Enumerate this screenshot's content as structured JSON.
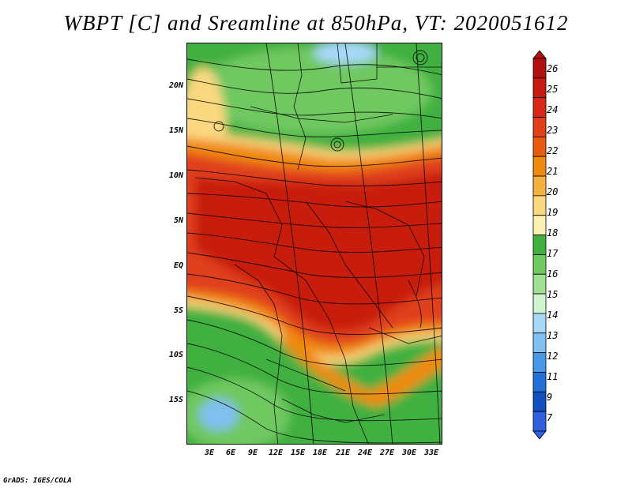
{
  "title": "WBPT [C] and Sreamline at 850hPa, VT: 2020051612",
  "footer": "GrADS: IGES/COLA",
  "y_axis": {
    "labels": [
      "20N",
      "15N",
      "10N",
      "5N",
      "EQ",
      "5S",
      "10S",
      "15S"
    ]
  },
  "x_axis": {
    "labels": [
      "3E",
      "6E",
      "9E",
      "12E",
      "15E",
      "18E",
      "21E",
      "24E",
      "27E",
      "30E",
      "33E"
    ]
  },
  "colorbar": {
    "levels": [
      "26",
      "25",
      "24",
      "23",
      "22",
      "21",
      "20",
      "19",
      "18",
      "17",
      "16",
      "15",
      "14",
      "13",
      "12",
      "11",
      "9",
      "7"
    ],
    "colors": [
      "#b01010",
      "#c81a10",
      "#d8281a",
      "#e0401a",
      "#e85c10",
      "#f08a10",
      "#f6b040",
      "#fad880",
      "#fcf0b0",
      "#40b040",
      "#70c860",
      "#a0e090",
      "#d0f4d0",
      "#a8d8f8",
      "#80c0f0",
      "#4898e8",
      "#2070d8",
      "#1050c0",
      "#3060e0"
    ]
  },
  "map": {
    "field_colors": {
      "hot": "#c81a10",
      "warm": "#e0401a",
      "mid": "#f08a10",
      "light": "#fad880",
      "green": "#40b040",
      "lightgreen": "#70c860",
      "blue": "#80c0f0"
    }
  }
}
